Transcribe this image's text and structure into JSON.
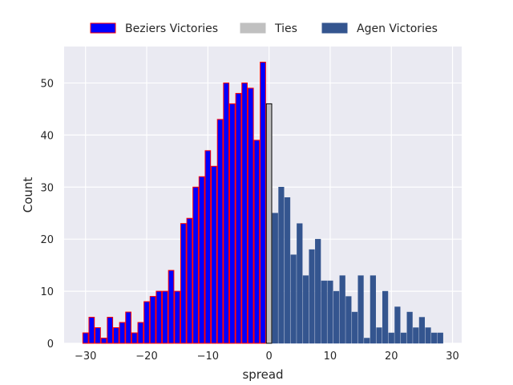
{
  "chart_data": {
    "type": "bar",
    "xlabel": "spread",
    "ylabel": "Count",
    "xlim": [
      -33.5,
      31.5
    ],
    "ylim": [
      0,
      57
    ],
    "xticks": [
      -30,
      -20,
      -10,
      0,
      10,
      20,
      30
    ],
    "xtick_labels": [
      "−30",
      "−20",
      "−10",
      "0",
      "10",
      "20",
      "30"
    ],
    "yticks": [
      0,
      10,
      20,
      30,
      40,
      50
    ],
    "ytick_labels": [
      "0",
      "10",
      "20",
      "30",
      "40",
      "50"
    ],
    "grid": true,
    "legend_position": "top-center",
    "series": [
      {
        "name": "Beziers Victories",
        "color": "#0000ff",
        "edge_color": "#ff0000",
        "x": [
          -30,
          -29,
          -28,
          -27,
          -26,
          -25,
          -24,
          -23,
          -22,
          -21,
          -20,
          -19,
          -18,
          -17,
          -16,
          -15,
          -14,
          -13,
          -12,
          -11,
          -10,
          -9,
          -8,
          -7,
          -6,
          -5,
          -4,
          -3,
          -2,
          -1
        ],
        "values": [
          2,
          5,
          3,
          1,
          5,
          3,
          4,
          6,
          2,
          4,
          8,
          9,
          10,
          10,
          14,
          10,
          23,
          24,
          30,
          32,
          37,
          34,
          43,
          50,
          46,
          48,
          50,
          49,
          39,
          54
        ]
      },
      {
        "name": "Ties",
        "color": "#c0c0c0",
        "edge_color": "#000000",
        "x": [
          0
        ],
        "values": [
          46
        ]
      },
      {
        "name": "Agen Victories",
        "color": "#34558f",
        "edge_color": "#34558f",
        "x": [
          1,
          2,
          3,
          4,
          5,
          6,
          7,
          8,
          9,
          10,
          11,
          12,
          13,
          14,
          15,
          16,
          17,
          18,
          19,
          20,
          21,
          22,
          23,
          24,
          25,
          26,
          27,
          28
        ],
        "values": [
          25,
          30,
          28,
          17,
          23,
          13,
          18,
          20,
          12,
          12,
          10,
          13,
          9,
          6,
          13,
          1,
          13,
          3,
          10,
          2,
          7,
          2,
          6,
          3,
          5,
          3,
          2,
          2
        ]
      }
    ]
  }
}
